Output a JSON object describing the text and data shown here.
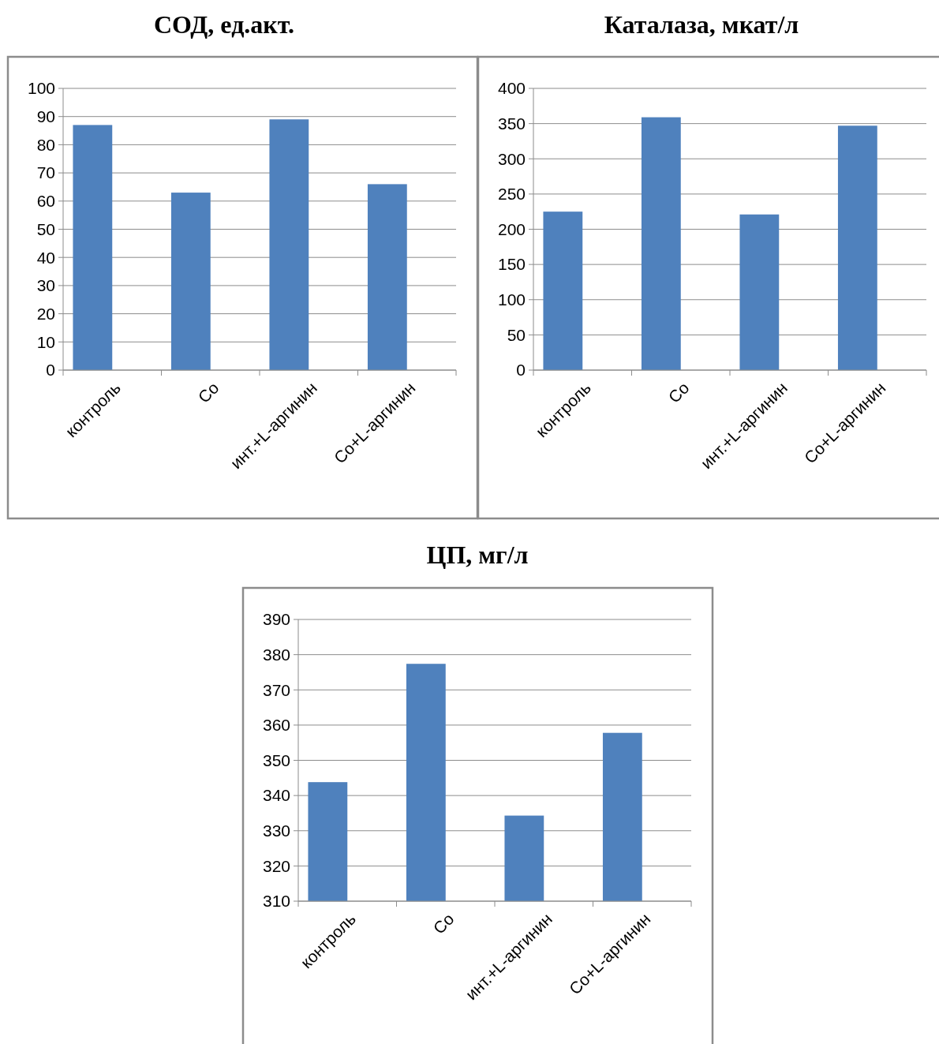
{
  "chart_data": [
    {
      "type": "bar",
      "title": "СОД, ед.акт.",
      "categories": [
        "контроль",
        "Co",
        "инт.+L-аргинин",
        "Co+L-аргинин"
      ],
      "values": [
        87,
        63,
        89,
        66
      ],
      "color": "#4f81bd",
      "ylim": [
        0,
        100
      ],
      "yticks": [
        0,
        10,
        20,
        30,
        40,
        50,
        60,
        70,
        80,
        90,
        100
      ],
      "grid": "y"
    },
    {
      "type": "bar",
      "title": "Каталаза, мкат/л",
      "categories": [
        "контроль",
        "Co",
        "инт.+L-аргинин",
        "Co+L-аргинин"
      ],
      "values": [
        225,
        359,
        221,
        347
      ],
      "color": "#4f81bd",
      "ylim": [
        0,
        400
      ],
      "yticks": [
        0,
        50,
        100,
        150,
        200,
        250,
        300,
        350,
        400
      ],
      "grid": "y"
    },
    {
      "type": "bar",
      "title": "ЦП, мг/л",
      "categories": [
        "контроль",
        "Co",
        "инт.+L-аргинин",
        "Co+L-аргинин"
      ],
      "values": [
        343.8,
        377.4,
        334.3,
        357.8
      ],
      "color": "#4f81bd",
      "ylim": [
        310,
        390
      ],
      "yticks": [
        310,
        320,
        330,
        340,
        350,
        360,
        370,
        380,
        390
      ],
      "grid": "y"
    }
  ]
}
